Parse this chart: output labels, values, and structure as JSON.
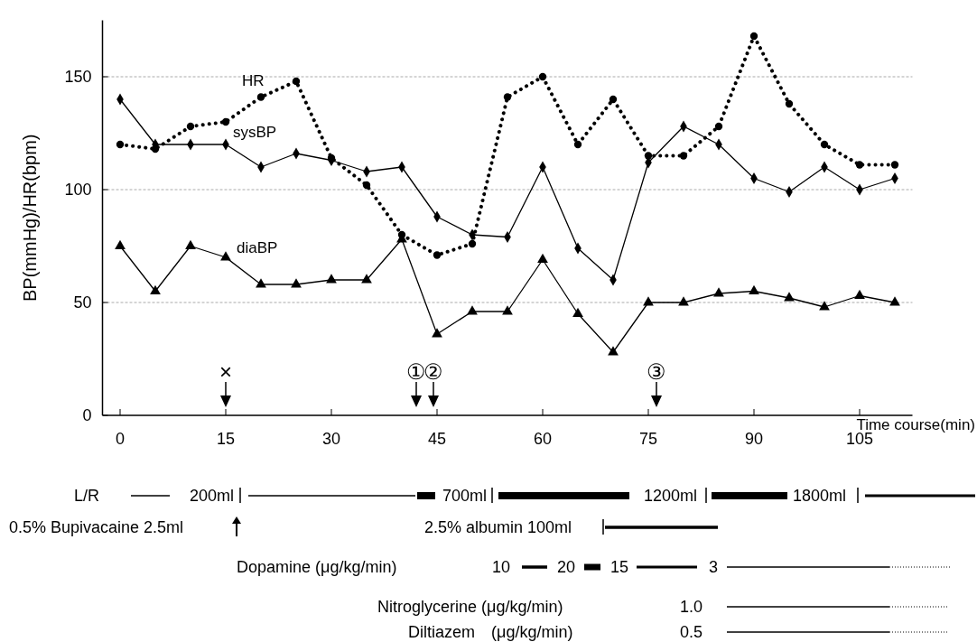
{
  "chart_data": {
    "type": "line",
    "xlabel": "Time course(min)",
    "ylabel": "BP(mmHg)/HR(bpm)",
    "x": [
      0,
      5,
      10,
      15,
      20,
      25,
      30,
      35,
      40,
      45,
      50,
      55,
      60,
      65,
      70,
      75,
      80,
      85,
      90,
      95,
      100,
      105,
      110
    ],
    "xlim": [
      -2.5,
      112.5
    ],
    "xticks": [
      0,
      15,
      30,
      45,
      60,
      75,
      90,
      105
    ],
    "ylim": [
      0,
      175
    ],
    "yticks": [
      0,
      50,
      100,
      150
    ],
    "grid": "y",
    "series": [
      {
        "name": "HR",
        "color": "#000000",
        "marker": "circle",
        "line_style": "dotted",
        "values": [
          120,
          118,
          128,
          130,
          141,
          148,
          114,
          102,
          80,
          71,
          76,
          141,
          150,
          120,
          140,
          115,
          115,
          128,
          168,
          138,
          120,
          111,
          111
        ]
      },
      {
        "name": "sysBP",
        "color": "#000000",
        "marker": "diamond",
        "line_style": "solid",
        "values": [
          140,
          120,
          120,
          120,
          110,
          116,
          113,
          108,
          110,
          88,
          80,
          79,
          110,
          74,
          60,
          112,
          128,
          120,
          105,
          99,
          110,
          100,
          105
        ]
      },
      {
        "name": "diaBP",
        "color": "#000000",
        "marker": "triangle",
        "line_style": "solid",
        "values": [
          75,
          55,
          75,
          70,
          58,
          58,
          60,
          60,
          78,
          36,
          46,
          46,
          69,
          45,
          28,
          50,
          50,
          54,
          55,
          52,
          48,
          53,
          50
        ]
      }
    ],
    "annotations": [
      "×",
      "①",
      "②",
      "③",
      "L/R",
      "200ml",
      "700ml",
      "1200ml",
      "1800ml",
      "0.5% Bupivacaine 2.5ml",
      "2.5% albumin 100ml",
      "Dopamine (μg/kg/min)",
      "10",
      "20",
      "15",
      "3",
      "Nitroglycerine (μg/kg/min)",
      "1.0",
      "Diltiazem　(μg/kg/min)",
      "0.5"
    ]
  }
}
